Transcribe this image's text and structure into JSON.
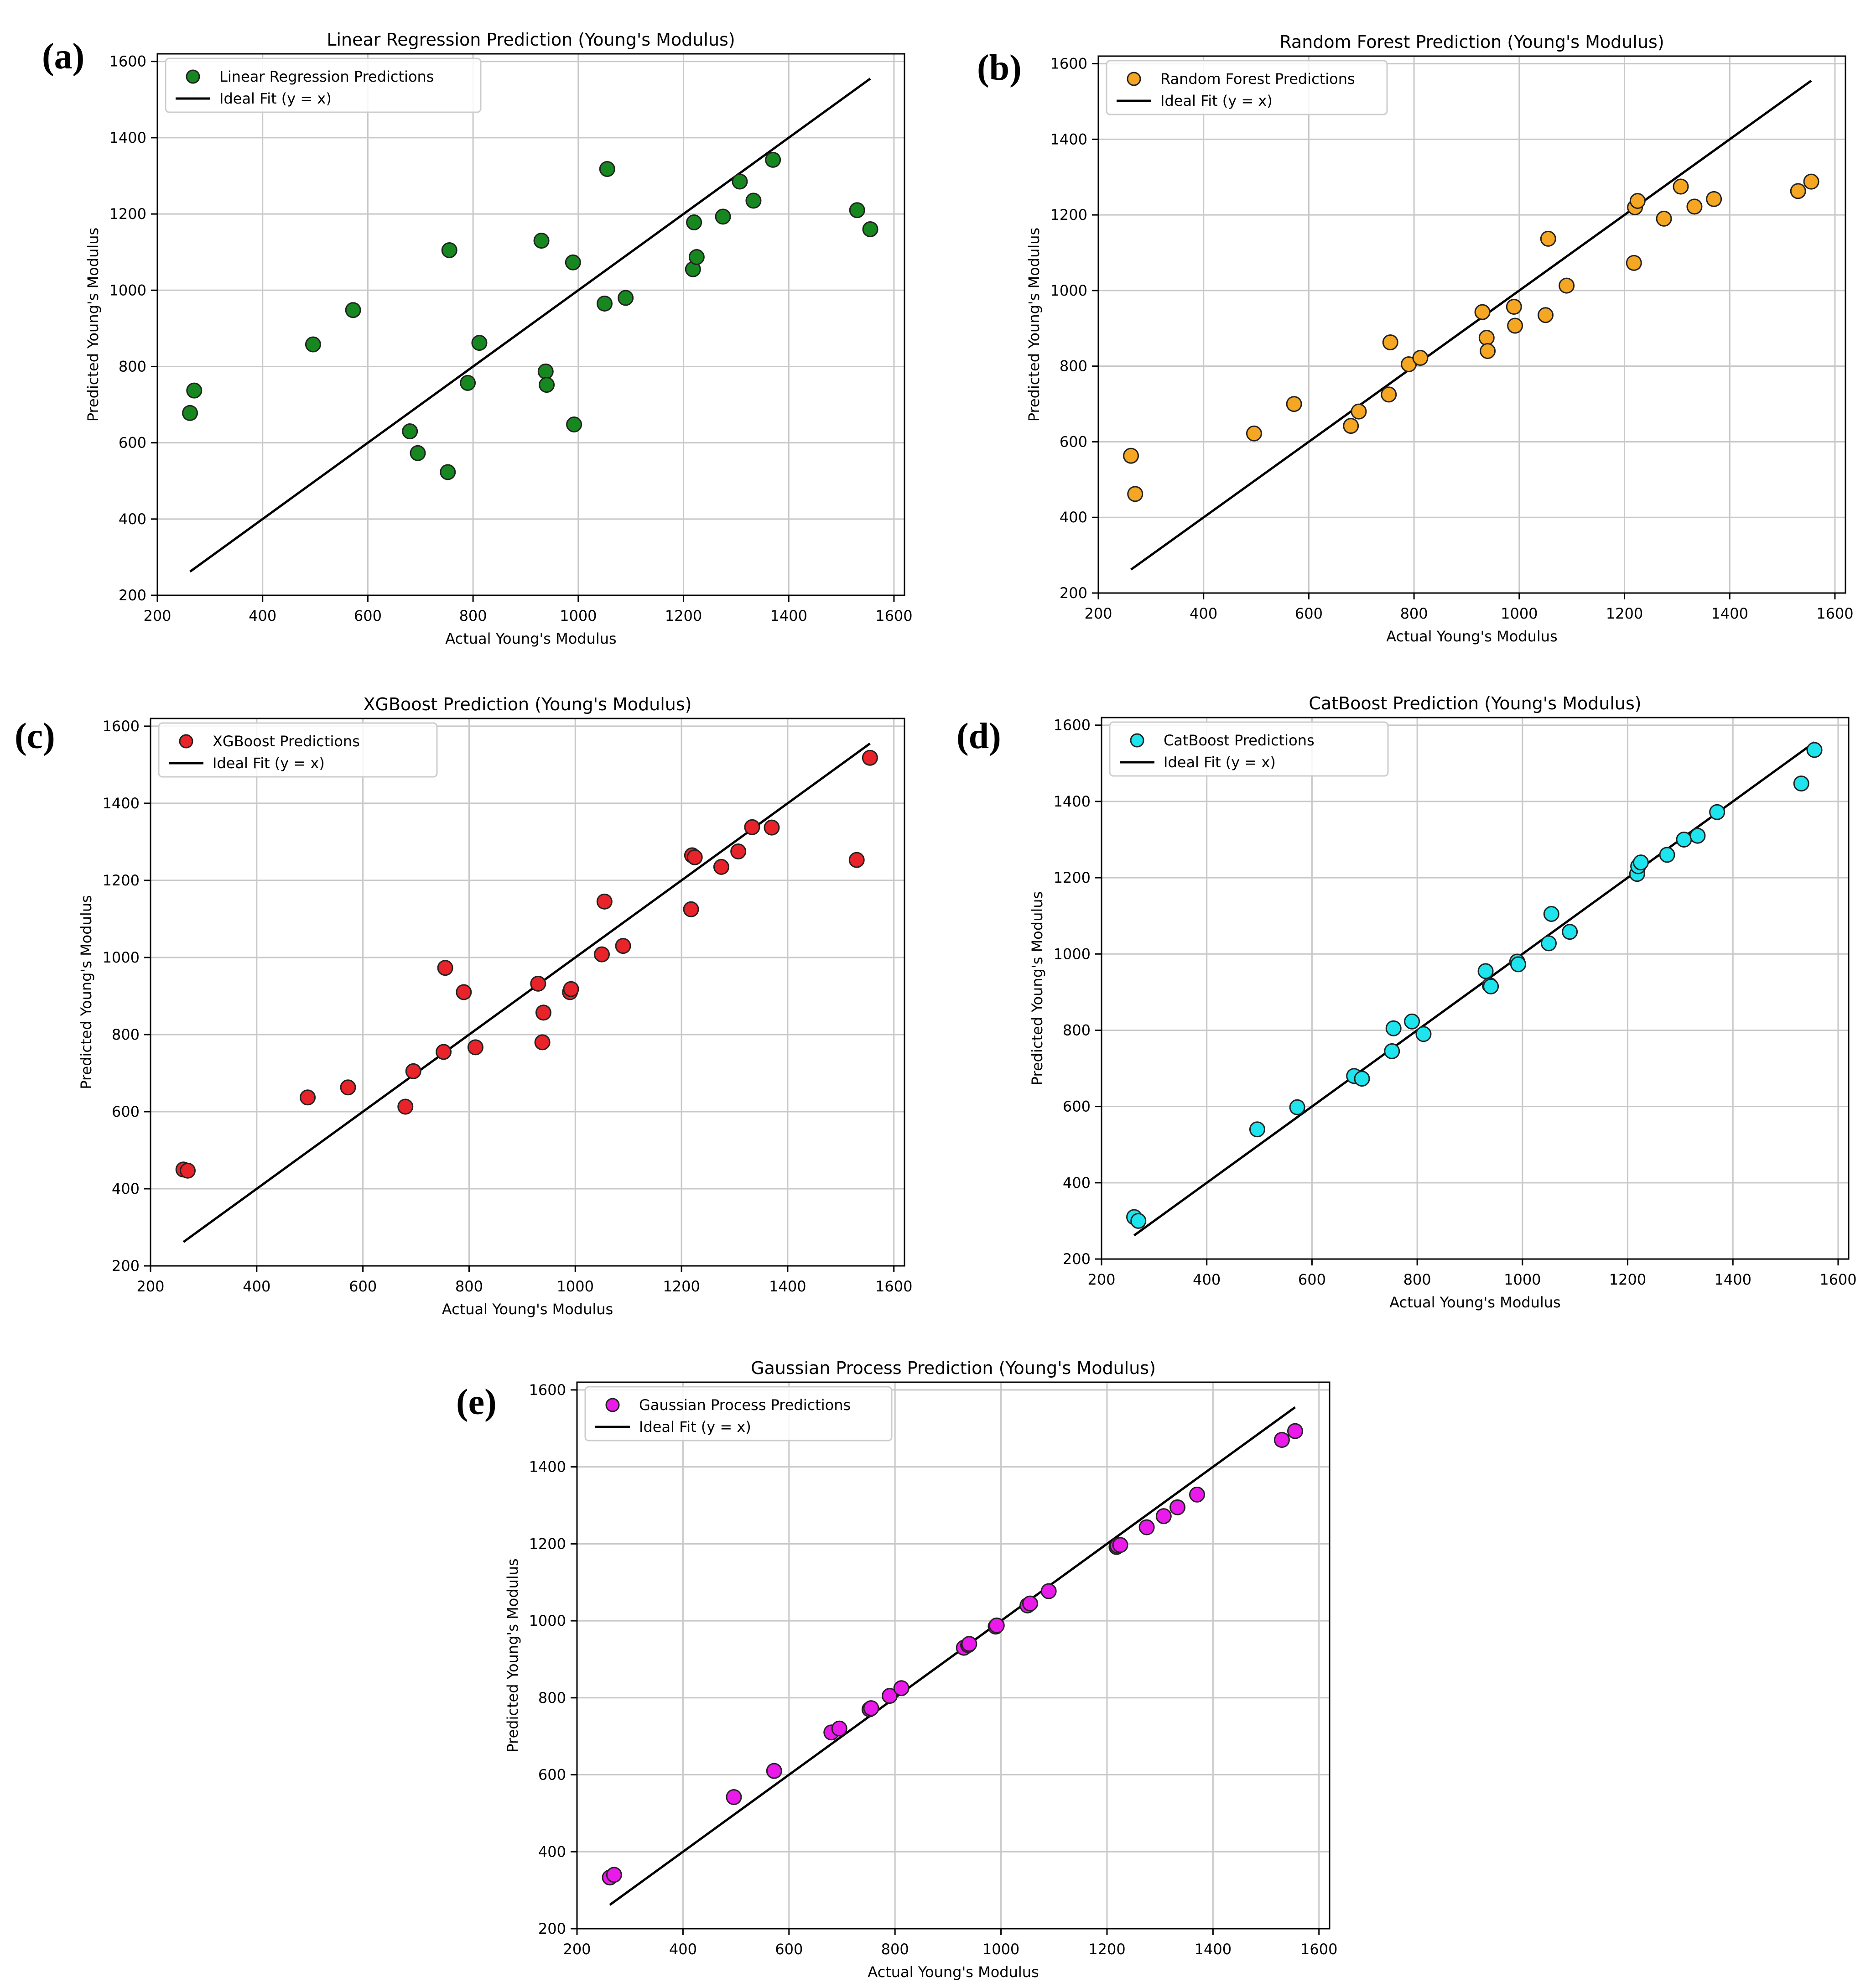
{
  "chart_data": [
    {
      "type": "scatter",
      "panel_label": "(a)",
      "title": "Linear Regression Prediction (Young's Modulus)",
      "xlabel": "Actual Young's Modulus",
      "ylabel": "Predicted Young's Modulus",
      "xlim": [
        200,
        1620
      ],
      "ylim": [
        200,
        1620
      ],
      "xticks": [
        200,
        400,
        600,
        800,
        1000,
        1200,
        1400,
        1600
      ],
      "yticks": [
        200,
        400,
        600,
        800,
        1000,
        1200,
        1400,
        1600
      ],
      "grid": true,
      "legend_position": "top-left",
      "series": [
        {
          "name": "Linear Regression Predictions",
          "color": "#16881f",
          "points": [
            [
              262,
              678
            ],
            [
              270,
              737
            ],
            [
              496,
              858
            ],
            [
              572,
              948
            ],
            [
              680,
              630
            ],
            [
              695,
              573
            ],
            [
              752,
              523
            ],
            [
              755,
              1105
            ],
            [
              790,
              757
            ],
            [
              812,
              862
            ],
            [
              930,
              1130
            ],
            [
              938,
              787
            ],
            [
              940,
              752
            ],
            [
              990,
              1073
            ],
            [
              992,
              648
            ],
            [
              1050,
              965
            ],
            [
              1055,
              1318
            ],
            [
              1090,
              980
            ],
            [
              1218,
              1055
            ],
            [
              1220,
              1178
            ],
            [
              1225,
              1087
            ],
            [
              1275,
              1193
            ],
            [
              1307,
              1285
            ],
            [
              1333,
              1235
            ],
            [
              1370,
              1342
            ],
            [
              1530,
              1210
            ],
            [
              1555,
              1160
            ]
          ]
        },
        {
          "name": "Ideal Fit (y = x)",
          "color": "#000000",
          "line": [
            [
              262,
              262
            ],
            [
              1555,
              1555
            ]
          ]
        }
      ]
    },
    {
      "type": "scatter",
      "panel_label": "(b)",
      "title": "Random Forest Prediction (Young's Modulus)",
      "xlabel": "Actual Young's Modulus",
      "ylabel": "Predicted Young's Modulus",
      "xlim": [
        200,
        1620
      ],
      "ylim": [
        200,
        1620
      ],
      "xticks": [
        200,
        400,
        600,
        800,
        1000,
        1200,
        1400,
        1600
      ],
      "yticks": [
        200,
        400,
        600,
        800,
        1000,
        1200,
        1400,
        1600
      ],
      "grid": true,
      "legend_position": "top-left",
      "series": [
        {
          "name": "Random Forest Predictions",
          "color": "#f5a623",
          "points": [
            [
              262,
              563
            ],
            [
              270,
              462
            ],
            [
              496,
              622
            ],
            [
              572,
              700
            ],
            [
              680,
              642
            ],
            [
              695,
              680
            ],
            [
              752,
              725
            ],
            [
              755,
              863
            ],
            [
              790,
              805
            ],
            [
              812,
              822
            ],
            [
              930,
              943
            ],
            [
              938,
              875
            ],
            [
              940,
              840
            ],
            [
              990,
              957
            ],
            [
              992,
              907
            ],
            [
              1050,
              935
            ],
            [
              1055,
              1137
            ],
            [
              1090,
              1013
            ],
            [
              1218,
              1073
            ],
            [
              1220,
              1220
            ],
            [
              1225,
              1237
            ],
            [
              1275,
              1190
            ],
            [
              1307,
              1275
            ],
            [
              1333,
              1222
            ],
            [
              1370,
              1242
            ],
            [
              1530,
              1263
            ],
            [
              1555,
              1288
            ]
          ]
        },
        {
          "name": "Ideal Fit (y = x)",
          "color": "#000000",
          "line": [
            [
              262,
              262
            ],
            [
              1555,
              1555
            ]
          ]
        }
      ]
    },
    {
      "type": "scatter",
      "panel_label": "(c)",
      "title": "XGBoost Prediction (Young's Modulus)",
      "xlabel": "Actual Young's Modulus",
      "ylabel": "Predicted Young's Modulus",
      "xlim": [
        200,
        1620
      ],
      "ylim": [
        200,
        1620
      ],
      "xticks": [
        200,
        400,
        600,
        800,
        1000,
        1200,
        1400,
        1600
      ],
      "yticks": [
        200,
        400,
        600,
        800,
        1000,
        1200,
        1400,
        1600
      ],
      "grid": true,
      "legend_position": "top-left",
      "series": [
        {
          "name": "XGBoost Predictions",
          "color": "#e8232a",
          "points": [
            [
              262,
              450
            ],
            [
              270,
              447
            ],
            [
              496,
              637
            ],
            [
              572,
              663
            ],
            [
              680,
              613
            ],
            [
              695,
              705
            ],
            [
              752,
              755
            ],
            [
              755,
              973
            ],
            [
              790,
              910
            ],
            [
              812,
              767
            ],
            [
              930,
              932
            ],
            [
              938,
              780
            ],
            [
              940,
              857
            ],
            [
              990,
              910
            ],
            [
              992,
              918
            ],
            [
              1050,
              1008
            ],
            [
              1055,
              1145
            ],
            [
              1090,
              1030
            ],
            [
              1218,
              1125
            ],
            [
              1220,
              1265
            ],
            [
              1225,
              1260
            ],
            [
              1275,
              1235
            ],
            [
              1307,
              1275
            ],
            [
              1333,
              1338
            ],
            [
              1370,
              1337
            ],
            [
              1530,
              1253
            ],
            [
              1555,
              1518
            ]
          ]
        },
        {
          "name": "Ideal Fit (y = x)",
          "color": "#000000",
          "line": [
            [
              262,
              262
            ],
            [
              1555,
              1555
            ]
          ]
        }
      ]
    },
    {
      "type": "scatter",
      "panel_label": "(d)",
      "title": "CatBoost Prediction (Young's Modulus)",
      "xlabel": "Actual Young's Modulus",
      "ylabel": "Predicted Young's Modulus",
      "xlim": [
        200,
        1620
      ],
      "ylim": [
        200,
        1620
      ],
      "xticks": [
        200,
        400,
        600,
        800,
        1000,
        1200,
        1400,
        1600
      ],
      "yticks": [
        200,
        400,
        600,
        800,
        1000,
        1200,
        1400,
        1600
      ],
      "grid": true,
      "legend_position": "top-left",
      "series": [
        {
          "name": "CatBoost Predictions",
          "color": "#1ee4ee",
          "points": [
            [
              262,
              310
            ],
            [
              270,
              300
            ],
            [
              496,
              540
            ],
            [
              572,
              598
            ],
            [
              680,
              680
            ],
            [
              695,
              673
            ],
            [
              752,
              745
            ],
            [
              755,
              805
            ],
            [
              790,
              823
            ],
            [
              812,
              790
            ],
            [
              930,
              955
            ],
            [
              938,
              918
            ],
            [
              940,
              915
            ],
            [
              990,
              980
            ],
            [
              992,
              973
            ],
            [
              1050,
              1028
            ],
            [
              1055,
              1105
            ],
            [
              1090,
              1058
            ],
            [
              1218,
              1210
            ],
            [
              1220,
              1230
            ],
            [
              1225,
              1240
            ],
            [
              1275,
              1260
            ],
            [
              1307,
              1300
            ],
            [
              1333,
              1310
            ],
            [
              1370,
              1372
            ],
            [
              1530,
              1447
            ],
            [
              1555,
              1535
            ]
          ]
        },
        {
          "name": "Ideal Fit (y = x)",
          "color": "#000000",
          "line": [
            [
              262,
              262
            ],
            [
              1555,
              1555
            ]
          ]
        }
      ]
    },
    {
      "type": "scatter",
      "panel_label": "(e)",
      "title": "Gaussian Process Prediction (Young's Modulus)",
      "xlabel": "Actual Young's Modulus",
      "ylabel": "Predicted Young's Modulus",
      "xlim": [
        200,
        1620
      ],
      "ylim": [
        200,
        1620
      ],
      "xticks": [
        200,
        400,
        600,
        800,
        1000,
        1200,
        1400,
        1600
      ],
      "yticks": [
        200,
        400,
        600,
        800,
        1000,
        1200,
        1400,
        1600
      ],
      "grid": true,
      "legend_position": "top-left",
      "series": [
        {
          "name": "Gaussian Process Predictions",
          "color": "#ea1aea",
          "points": [
            [
              262,
              333
            ],
            [
              270,
              340
            ],
            [
              496,
              542
            ],
            [
              572,
              610
            ],
            [
              680,
              710
            ],
            [
              695,
              720
            ],
            [
              752,
              770
            ],
            [
              755,
              773
            ],
            [
              790,
              805
            ],
            [
              812,
              825
            ],
            [
              930,
              930
            ],
            [
              938,
              937
            ],
            [
              940,
              940
            ],
            [
              990,
              985
            ],
            [
              992,
              988
            ],
            [
              1050,
              1040
            ],
            [
              1055,
              1045
            ],
            [
              1090,
              1077
            ],
            [
              1218,
              1192
            ],
            [
              1220,
              1195
            ],
            [
              1225,
              1197
            ],
            [
              1275,
              1243
            ],
            [
              1307,
              1272
            ],
            [
              1333,
              1295
            ],
            [
              1370,
              1328
            ],
            [
              1530,
              1470
            ],
            [
              1555,
              1493
            ]
          ]
        },
        {
          "name": "Ideal Fit (y = x)",
          "color": "#000000",
          "line": [
            [
              262,
              262
            ],
            [
              1555,
              1555
            ]
          ]
        }
      ]
    }
  ]
}
